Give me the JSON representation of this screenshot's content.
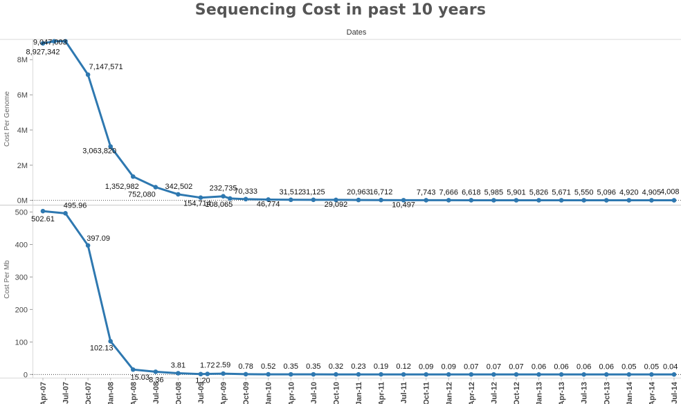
{
  "chart_data": {
    "type": "line",
    "title": "Sequencing Cost in past 10 years",
    "xlabel": "Dates",
    "categories": [
      "Apr-07",
      "Jul-07",
      "Oct-07",
      "Jan-08",
      "Apr-08",
      "Jul-08",
      "Oct-08",
      "Jul-09",
      "Apr-09",
      "Oct-09",
      "Jan-10",
      "Apr-10",
      "Jul-10",
      "Oct-10",
      "Jan-11",
      "Apr-11",
      "Jul-11",
      "Oct-11",
      "Jan-12",
      "Apr-12",
      "Jul-12",
      "Oct-12",
      "Jan-13",
      "Apr-13",
      "Jul-13",
      "Oct-13",
      "Jan-14",
      "Apr-14",
      "Jul-14",
      "Jan-14"
    ],
    "color": "#2e78b0",
    "panels": [
      {
        "ylabel": "Cost Per Genome",
        "ylim": [
          -250000,
          9150000
        ],
        "ticks": [
          0,
          2000000,
          4000000,
          6000000,
          8000000
        ],
        "tick_labels": [
          "0M",
          "2M",
          "4M",
          "6M",
          "8M"
        ],
        "points": [
          {
            "i": 0,
            "y": 8927342,
            "label": "8,927,342"
          },
          {
            "i": 0.5,
            "y": 9047003,
            "label": "9,047,003"
          },
          {
            "i": 1,
            "y": 9047003,
            "label": ""
          },
          {
            "i": 2,
            "y": 7147571,
            "label": "7,147,571"
          },
          {
            "i": 3,
            "y": 3063820,
            "label": "3,063,820"
          },
          {
            "i": 4,
            "y": 1352982,
            "label": "1,352,982"
          },
          {
            "i": 5,
            "y": 752080,
            "label": "752,080"
          },
          {
            "i": 6,
            "y": 342502,
            "label": "342,502"
          },
          {
            "i": 7,
            "y": 154714,
            "label": "154,714"
          },
          {
            "i": 8,
            "y": 232735,
            "label": "232,735"
          },
          {
            "i": 8.3,
            "y": 108065,
            "label": "108,065"
          },
          {
            "i": 9,
            "y": 70333,
            "label": "70,333"
          },
          {
            "i": 10,
            "y": 46774,
            "label": "46,774"
          },
          {
            "i": 11,
            "y": 31512,
            "label": "31,512"
          },
          {
            "i": 12,
            "y": 31125,
            "label": "31,125"
          },
          {
            "i": 13,
            "y": 29092,
            "label": "29,092"
          },
          {
            "i": 14,
            "y": 20963,
            "label": "20,963"
          },
          {
            "i": 15,
            "y": 16712,
            "label": "16,712"
          },
          {
            "i": 16,
            "y": 10497,
            "label": "10,497"
          },
          {
            "i": 17,
            "y": 7743,
            "label": "7,743"
          },
          {
            "i": 18,
            "y": 7666,
            "label": "7,666"
          },
          {
            "i": 19,
            "y": 6618,
            "label": "6,618"
          },
          {
            "i": 20,
            "y": 5985,
            "label": "5,985"
          },
          {
            "i": 21,
            "y": 5901,
            "label": "5,901"
          },
          {
            "i": 22,
            "y": 5826,
            "label": "5,826"
          },
          {
            "i": 23,
            "y": 5671,
            "label": "5,671"
          },
          {
            "i": 24,
            "y": 5550,
            "label": "5,550"
          },
          {
            "i": 25,
            "y": 5096,
            "label": "5,096"
          },
          {
            "i": 26,
            "y": 4920,
            "label": "4,920"
          },
          {
            "i": 27,
            "y": 4905,
            "label": "4,905"
          },
          {
            "i": 28,
            "y": 4008,
            "label": "4,008"
          }
        ]
      },
      {
        "ylabel": "Cost Per Mb",
        "ylim": [
          -10,
          518
        ],
        "ticks": [
          0,
          100,
          200,
          300,
          400,
          500
        ],
        "tick_labels": [
          "0",
          "100",
          "200",
          "300",
          "400",
          "500"
        ],
        "points": [
          {
            "i": 0,
            "y": 502.61,
            "label": "502.61"
          },
          {
            "i": 1,
            "y": 495.96,
            "label": "495.96"
          },
          {
            "i": 2,
            "y": 397.09,
            "label": "397.09"
          },
          {
            "i": 3,
            "y": 102.13,
            "label": "102.13"
          },
          {
            "i": 4,
            "y": 15.03,
            "label": "15.03"
          },
          {
            "i": 5,
            "y": 8.36,
            "label": "8.36"
          },
          {
            "i": 6,
            "y": 3.81,
            "label": "3.81"
          },
          {
            "i": 7,
            "y": 1.2,
            "label": "1.20"
          },
          {
            "i": 7.3,
            "y": 1.72,
            "label": "1.72"
          },
          {
            "i": 8,
            "y": 2.59,
            "label": "2.59"
          },
          {
            "i": 9,
            "y": 0.78,
            "label": "0.78"
          },
          {
            "i": 10,
            "y": 0.52,
            "label": "0.52"
          },
          {
            "i": 11,
            "y": 0.35,
            "label": "0.35"
          },
          {
            "i": 12,
            "y": 0.35,
            "label": "0.35"
          },
          {
            "i": 13,
            "y": 0.32,
            "label": "0.32"
          },
          {
            "i": 14,
            "y": 0.23,
            "label": "0.23"
          },
          {
            "i": 15,
            "y": 0.19,
            "label": "0.19"
          },
          {
            "i": 16,
            "y": 0.12,
            "label": "0.12"
          },
          {
            "i": 17,
            "y": 0.09,
            "label": "0.09"
          },
          {
            "i": 18,
            "y": 0.09,
            "label": "0.09"
          },
          {
            "i": 19,
            "y": 0.07,
            "label": "0.07"
          },
          {
            "i": 20,
            "y": 0.07,
            "label": "0.07"
          },
          {
            "i": 21,
            "y": 0.07,
            "label": "0.07"
          },
          {
            "i": 22,
            "y": 0.06,
            "label": "0.06"
          },
          {
            "i": 23,
            "y": 0.06,
            "label": "0.06"
          },
          {
            "i": 24,
            "y": 0.06,
            "label": "0.06"
          },
          {
            "i": 25,
            "y": 0.06,
            "label": "0.06"
          },
          {
            "i": 26,
            "y": 0.05,
            "label": "0.05"
          },
          {
            "i": 27,
            "y": 0.05,
            "label": "0.05"
          },
          {
            "i": 28,
            "y": 0.04,
            "label": "0.04"
          }
        ]
      }
    ]
  }
}
